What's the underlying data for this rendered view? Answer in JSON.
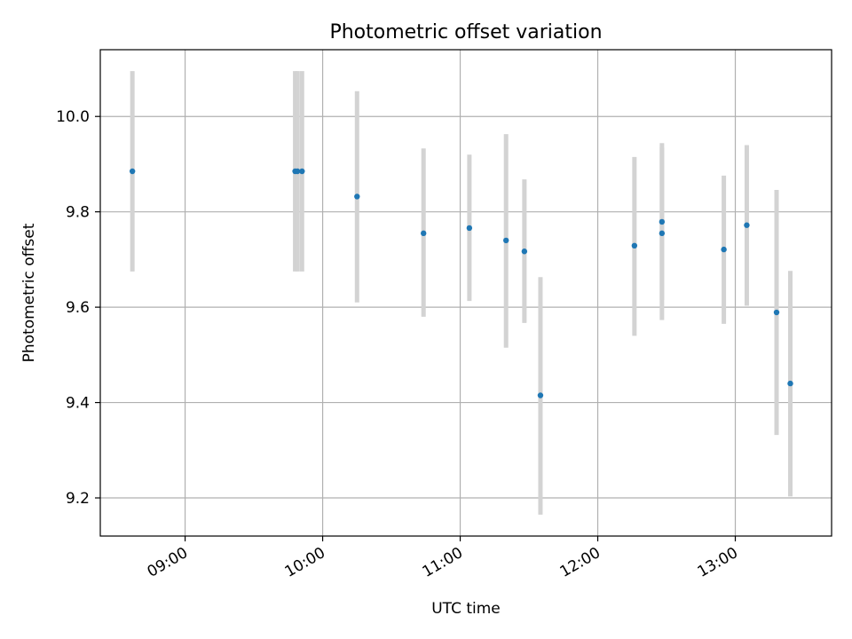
{
  "chart_data": {
    "type": "scatter",
    "title": "Photometric offset variation",
    "xlabel": "UTC time",
    "ylabel": "Photometric offset",
    "x_range": [
      "08:23",
      "13:42"
    ],
    "y_range": [
      9.12,
      10.14
    ],
    "x_ticks": [
      "09:00",
      "10:00",
      "11:00",
      "12:00",
      "13:00"
    ],
    "y_ticks": [
      9.2,
      9.4,
      9.6,
      9.8,
      10.0
    ],
    "grid": true,
    "colors": {
      "point": "#1f77b4",
      "errorbar": "#d3d3d3",
      "grid": "#b0b0b0"
    },
    "points": [
      {
        "t": "08:37",
        "y": 9.885,
        "err_low": 9.675,
        "err_high": 10.095
      },
      {
        "t": "09:48",
        "y": 9.885,
        "err_low": 9.675,
        "err_high": 10.095
      },
      {
        "t": "09:49",
        "y": 9.885,
        "err_low": 9.675,
        "err_high": 10.095
      },
      {
        "t": "09:51",
        "y": 9.885,
        "err_low": 9.675,
        "err_high": 10.095
      },
      {
        "t": "10:15",
        "y": 9.832,
        "err_low": 9.61,
        "err_high": 10.053
      },
      {
        "t": "10:44",
        "y": 9.755,
        "err_low": 9.58,
        "err_high": 9.933
      },
      {
        "t": "11:04",
        "y": 9.766,
        "err_low": 9.613,
        "err_high": 9.92
      },
      {
        "t": "11:20",
        "y": 9.74,
        "err_low": 9.515,
        "err_high": 9.963
      },
      {
        "t": "11:28",
        "y": 9.717,
        "err_low": 9.567,
        "err_high": 9.868
      },
      {
        "t": "11:35",
        "y": 9.415,
        "err_low": 9.165,
        "err_high": 9.663
      },
      {
        "t": "12:16",
        "y": 9.729,
        "err_low": 9.54,
        "err_high": 9.915
      },
      {
        "t": "12:28",
        "y": 9.779,
        "err_low": 9.615,
        "err_high": 9.944
      },
      {
        "t": "12:28",
        "y": 9.755,
        "err_low": 9.573,
        "err_high": 9.935
      },
      {
        "t": "12:55",
        "y": 9.721,
        "err_low": 9.565,
        "err_high": 9.876
      },
      {
        "t": "13:05",
        "y": 9.772,
        "err_low": 9.603,
        "err_high": 9.94
      },
      {
        "t": "13:18",
        "y": 9.589,
        "err_low": 9.332,
        "err_high": 9.846
      },
      {
        "t": "13:24",
        "y": 9.44,
        "err_low": 9.203,
        "err_high": 9.676
      }
    ]
  }
}
